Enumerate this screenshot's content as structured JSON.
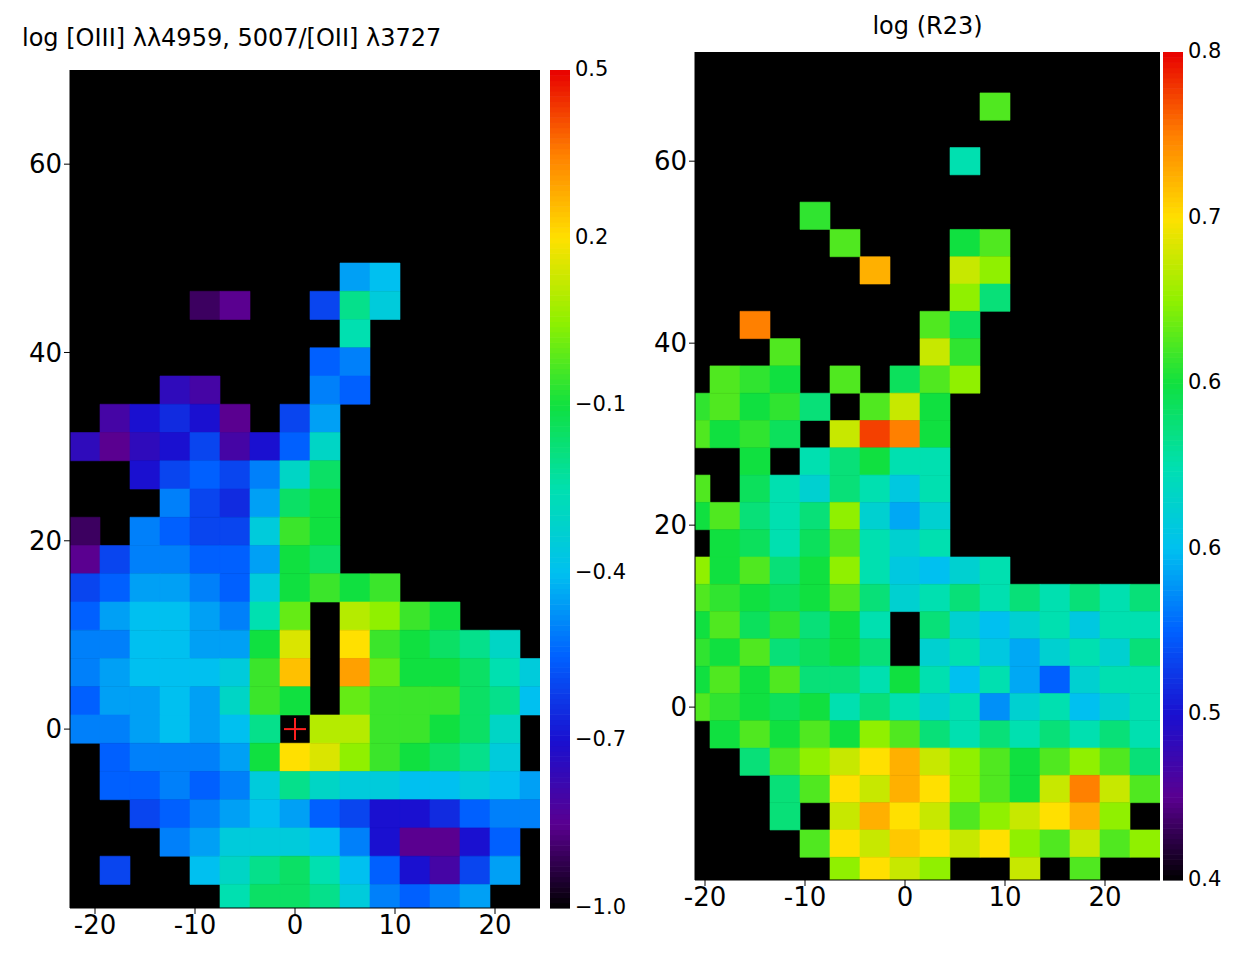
{
  "chart_data": [
    {
      "type": "heatmap",
      "title": "log [OIII] λλ4959, 5007/[OII] λ3727",
      "xlim": [
        -22.5,
        24.5
      ],
      "ylim": [
        -19,
        70
      ],
      "xticks": [
        -20,
        -10,
        0,
        10,
        20
      ],
      "yticks": [
        0,
        20,
        40,
        60
      ],
      "grid": false,
      "x": [
        -21,
        -18,
        -15,
        -12,
        -9,
        -6,
        -3,
        0,
        3,
        6,
        9,
        12,
        15,
        18,
        21,
        24
      ],
      "y": [
        48,
        45,
        42,
        39,
        36,
        33,
        30,
        27,
        24,
        21,
        18,
        15,
        12,
        9,
        6,
        3,
        0,
        -3,
        -6,
        -9,
        -12,
        -15,
        -18
      ],
      "values": [
        [
          null,
          null,
          null,
          null,
          null,
          null,
          null,
          null,
          null,
          -0.45,
          -0.4,
          null,
          null,
          null,
          null,
          null
        ],
        [
          null,
          null,
          null,
          null,
          -0.9,
          -0.85,
          null,
          null,
          -0.6,
          -0.2,
          -0.35,
          null,
          null,
          null,
          null,
          null
        ],
        [
          null,
          null,
          null,
          null,
          null,
          null,
          null,
          null,
          null,
          -0.25,
          null,
          null,
          null,
          null,
          null,
          null
        ],
        [
          null,
          null,
          null,
          null,
          null,
          null,
          null,
          null,
          -0.55,
          -0.5,
          null,
          null,
          null,
          null,
          null,
          null
        ],
        [
          null,
          null,
          null,
          -0.75,
          -0.8,
          null,
          null,
          null,
          -0.5,
          -0.55,
          null,
          null,
          null,
          null,
          null,
          null
        ],
        [
          null,
          -0.8,
          -0.7,
          -0.65,
          -0.7,
          -0.85,
          null,
          -0.6,
          -0.45,
          null,
          null,
          null,
          null,
          null,
          null,
          null
        ],
        [
          -0.75,
          -0.85,
          -0.75,
          -0.7,
          -0.6,
          -0.8,
          -0.7,
          -0.55,
          -0.3,
          null,
          null,
          null,
          null,
          null,
          null,
          null
        ],
        [
          null,
          null,
          -0.7,
          -0.6,
          -0.55,
          -0.6,
          -0.5,
          -0.3,
          -0.15,
          null,
          null,
          null,
          null,
          null,
          null,
          null
        ],
        [
          null,
          null,
          null,
          -0.5,
          -0.6,
          -0.65,
          -0.45,
          -0.15,
          -0.1,
          null,
          null,
          null,
          null,
          null,
          null,
          null
        ],
        [
          -0.9,
          null,
          -0.5,
          -0.55,
          -0.6,
          -0.6,
          -0.35,
          -0.05,
          -0.1,
          null,
          null,
          null,
          null,
          null,
          null,
          null
        ],
        [
          -0.85,
          -0.6,
          -0.5,
          -0.5,
          -0.55,
          -0.55,
          -0.45,
          -0.1,
          -0.15,
          null,
          null,
          null,
          null,
          null,
          null,
          null
        ],
        [
          -0.6,
          -0.55,
          -0.45,
          -0.45,
          -0.5,
          -0.55,
          -0.35,
          -0.1,
          -0.05,
          -0.1,
          -0.05,
          null,
          null,
          null,
          null,
          null
        ],
        [
          -0.55,
          -0.45,
          -0.4,
          -0.4,
          -0.45,
          -0.5,
          -0.25,
          0,
          null,
          0.1,
          0.05,
          -0.05,
          -0.1,
          null,
          null,
          null
        ],
        [
          -0.5,
          -0.5,
          -0.4,
          -0.4,
          -0.45,
          -0.45,
          -0.1,
          0.15,
          null,
          0.2,
          -0.05,
          -0.1,
          -0.15,
          -0.2,
          -0.3,
          null
        ],
        [
          -0.5,
          -0.45,
          -0.4,
          -0.4,
          -0.4,
          -0.35,
          -0.05,
          0.25,
          null,
          0.3,
          0,
          -0.1,
          -0.1,
          -0.15,
          -0.25,
          -0.35
        ],
        [
          -0.55,
          -0.45,
          -0.45,
          -0.4,
          -0.45,
          -0.3,
          -0.05,
          -0.1,
          null,
          0,
          -0.05,
          -0.05,
          -0.05,
          -0.15,
          -0.2,
          -0.4
        ],
        [
          -0.5,
          -0.5,
          -0.45,
          -0.4,
          -0.45,
          -0.4,
          -0.2,
          null,
          0.1,
          0.1,
          -0.05,
          -0.05,
          -0.1,
          -0.15,
          -0.3,
          null
        ],
        [
          null,
          -0.55,
          -0.5,
          -0.5,
          -0.5,
          -0.45,
          -0.1,
          0.2,
          0.15,
          0.05,
          -0.05,
          -0.1,
          -0.15,
          -0.2,
          -0.35,
          null
        ],
        [
          null,
          -0.55,
          -0.55,
          -0.5,
          -0.55,
          -0.5,
          -0.35,
          -0.2,
          -0.3,
          -0.35,
          -0.35,
          -0.4,
          -0.4,
          -0.35,
          -0.4,
          -0.45
        ],
        [
          null,
          null,
          -0.6,
          -0.55,
          -0.5,
          -0.45,
          -0.4,
          -0.45,
          -0.55,
          -0.6,
          -0.7,
          -0.7,
          -0.65,
          -0.55,
          -0.5,
          -0.5
        ],
        [
          null,
          null,
          null,
          -0.5,
          -0.45,
          -0.35,
          -0.35,
          -0.35,
          -0.4,
          -0.5,
          -0.7,
          -0.85,
          -0.85,
          -0.7,
          -0.55,
          null
        ],
        [
          null,
          -0.6,
          null,
          null,
          -0.4,
          -0.3,
          -0.2,
          -0.15,
          -0.25,
          -0.4,
          -0.55,
          -0.7,
          -0.8,
          -0.6,
          -0.45,
          null
        ],
        [
          null,
          null,
          null,
          null,
          null,
          -0.25,
          -0.15,
          -0.15,
          -0.2,
          -0.35,
          -0.5,
          -0.55,
          -0.5,
          -0.45,
          null,
          null
        ]
      ],
      "colorbar": {
        "range": [
          -1,
          0.5
        ],
        "ticks": [
          {
            "value": -1,
            "label": "−1.0"
          },
          {
            "value": -0.7,
            "label": "−0.7"
          },
          {
            "value": -0.4,
            "label": "−0.4"
          },
          {
            "value": -0.1,
            "label": "−0.1"
          },
          0.2,
          0.5
        ]
      },
      "series": [
        {
          "type": "scatter",
          "color": "#ff2020",
          "marker": "plus",
          "x": [
            0
          ],
          "values": [
            0
          ]
        }
      ]
    },
    {
      "type": "heatmap",
      "title": "log (R23)",
      "xlim": [
        -21,
        25.5
      ],
      "ylim": [
        -19,
        72
      ],
      "xticks": [
        -20,
        -10,
        0,
        10,
        20
      ],
      "yticks": [
        0,
        20,
        40,
        60
      ],
      "grid": false,
      "x": [
        -21,
        -18,
        -15,
        -12,
        -9,
        -6,
        -3,
        0,
        3,
        6,
        9,
        12,
        15,
        18,
        21,
        24
      ],
      "y": [
        66,
        63,
        60,
        57,
        54,
        51,
        48,
        45,
        42,
        39,
        36,
        33,
        30,
        27,
        24,
        21,
        18,
        15,
        12,
        9,
        6,
        3,
        0,
        -3,
        -6,
        -9,
        -12,
        -15,
        -18
      ],
      "values": [
        [
          null,
          null,
          null,
          null,
          null,
          null,
          null,
          null,
          null,
          null,
          0.66,
          null,
          null,
          null,
          null,
          null
        ],
        [
          null,
          null,
          null,
          null,
          null,
          null,
          null,
          null,
          null,
          null,
          null,
          null,
          null,
          null,
          null,
          null
        ],
        [
          null,
          null,
          null,
          null,
          null,
          null,
          null,
          null,
          null,
          0.6,
          null,
          null,
          null,
          null,
          null,
          null
        ],
        [
          null,
          null,
          null,
          null,
          null,
          null,
          null,
          null,
          null,
          null,
          null,
          null,
          null,
          null,
          null,
          null
        ],
        [
          null,
          null,
          null,
          null,
          0.65,
          null,
          null,
          null,
          null,
          null,
          null,
          null,
          null,
          null,
          null,
          null
        ],
        [
          null,
          null,
          null,
          null,
          null,
          0.66,
          null,
          null,
          null,
          0.64,
          0.66,
          null,
          null,
          null,
          null,
          null
        ],
        [
          null,
          null,
          null,
          null,
          null,
          null,
          0.74,
          null,
          null,
          0.7,
          0.68,
          null,
          null,
          null,
          null,
          null
        ],
        [
          null,
          null,
          null,
          null,
          null,
          null,
          null,
          null,
          null,
          0.68,
          0.62,
          null,
          null,
          null,
          null,
          null
        ],
        [
          null,
          null,
          0.76,
          null,
          null,
          null,
          null,
          null,
          0.66,
          0.63,
          null,
          null,
          null,
          null,
          null,
          null
        ],
        [
          null,
          null,
          null,
          0.66,
          null,
          null,
          null,
          null,
          0.7,
          0.65,
          null,
          null,
          null,
          null,
          null,
          null
        ],
        [
          null,
          0.66,
          0.65,
          0.64,
          null,
          0.66,
          null,
          0.63,
          0.66,
          0.68,
          null,
          null,
          null,
          null,
          null,
          null
        ],
        [
          0.65,
          0.66,
          0.64,
          0.65,
          0.62,
          null,
          0.66,
          0.7,
          0.64,
          null,
          null,
          null,
          null,
          null,
          null,
          null
        ],
        [
          0.66,
          0.64,
          0.65,
          0.63,
          null,
          0.7,
          0.78,
          0.76,
          0.64,
          null,
          null,
          null,
          null,
          null,
          null,
          null
        ],
        [
          null,
          null,
          0.64,
          null,
          0.6,
          0.62,
          0.64,
          0.6,
          0.6,
          null,
          null,
          null,
          null,
          null,
          null,
          null
        ],
        [
          0.66,
          null,
          0.63,
          0.6,
          0.58,
          0.62,
          0.6,
          0.57,
          0.6,
          null,
          null,
          null,
          null,
          null,
          null,
          null
        ],
        [
          0.64,
          0.66,
          0.62,
          0.6,
          0.62,
          0.68,
          0.58,
          0.55,
          0.58,
          null,
          null,
          null,
          null,
          null,
          null,
          null
        ],
        [
          null,
          0.64,
          0.63,
          0.6,
          0.63,
          0.66,
          0.6,
          0.58,
          0.6,
          null,
          null,
          null,
          null,
          null,
          null,
          null
        ],
        [
          0.68,
          0.64,
          0.66,
          0.62,
          0.64,
          0.68,
          0.6,
          0.57,
          0.56,
          0.58,
          0.6,
          null,
          null,
          null,
          null,
          null
        ],
        [
          0.66,
          0.65,
          0.64,
          0.63,
          0.64,
          0.66,
          0.62,
          0.58,
          0.6,
          0.62,
          0.6,
          0.62,
          0.6,
          0.62,
          0.6,
          0.62
        ],
        [
          0.64,
          0.66,
          0.63,
          0.65,
          0.62,
          0.64,
          0.6,
          null,
          0.62,
          0.58,
          0.56,
          0.58,
          0.6,
          0.57,
          0.6,
          0.6
        ],
        [
          0.65,
          0.64,
          0.66,
          0.62,
          0.63,
          0.64,
          0.62,
          null,
          0.58,
          0.6,
          0.57,
          0.55,
          0.58,
          0.6,
          0.58,
          0.62
        ],
        [
          0.64,
          0.66,
          0.64,
          0.66,
          0.62,
          0.62,
          0.6,
          0.64,
          0.6,
          0.56,
          0.6,
          0.55,
          0.52,
          0.58,
          0.6,
          0.6
        ],
        [
          0.66,
          0.65,
          0.64,
          0.63,
          0.64,
          0.6,
          0.62,
          0.6,
          0.58,
          0.6,
          0.54,
          0.58,
          0.6,
          0.56,
          0.58,
          0.6
        ],
        [
          null,
          0.64,
          0.66,
          0.64,
          0.66,
          0.64,
          0.68,
          0.66,
          0.62,
          0.6,
          0.62,
          0.6,
          0.62,
          0.6,
          0.62,
          0.6
        ],
        [
          null,
          null,
          0.62,
          0.66,
          0.68,
          0.7,
          0.72,
          0.74,
          0.7,
          0.68,
          0.66,
          0.64,
          0.66,
          0.68,
          0.66,
          0.62
        ],
        [
          null,
          null,
          null,
          0.62,
          0.66,
          0.72,
          0.7,
          0.74,
          0.72,
          0.68,
          0.66,
          0.64,
          0.7,
          0.76,
          0.7,
          0.66
        ],
        [
          null,
          null,
          null,
          0.62,
          null,
          0.7,
          0.74,
          0.72,
          0.7,
          0.66,
          0.68,
          0.7,
          0.72,
          0.74,
          0.68,
          null
        ],
        [
          null,
          null,
          null,
          null,
          0.66,
          0.72,
          0.7,
          0.73,
          0.72,
          0.7,
          0.72,
          0.68,
          0.66,
          0.7,
          0.66,
          0.68
        ],
        [
          null,
          null,
          null,
          null,
          null,
          0.68,
          0.72,
          0.7,
          0.68,
          null,
          null,
          0.7,
          null,
          0.66,
          null,
          null
        ]
      ],
      "colorbar": {
        "range": [
          0.4,
          0.8
        ],
        "ticks": [
          0.4,
          {
            "value": 0.48,
            "label": "0.5"
          },
          {
            "value": 0.56,
            "label": "0.6"
          },
          {
            "value": 0.64,
            "label": "0.6"
          },
          {
            "value": 0.72,
            "label": "0.7"
          },
          0.8
        ]
      }
    }
  ]
}
